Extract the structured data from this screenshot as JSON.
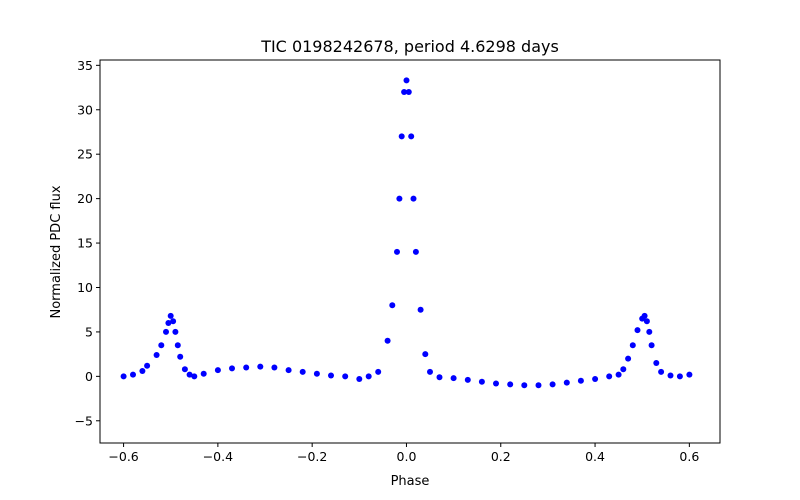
{
  "chart_data": {
    "type": "scatter",
    "title": "TIC 0198242678, period 4.6298 days",
    "xlabel": "Phase",
    "ylabel": "Normalized PDC flux",
    "xlim": [
      -0.65,
      0.665
    ],
    "ylim": [
      -7.5,
      35.6
    ],
    "xticks": [
      -0.6,
      -0.4,
      -0.2,
      0.0,
      0.2,
      0.4,
      0.6
    ],
    "xtick_labels": [
      "−0.6",
      "−0.4",
      "−0.2",
      "0.0",
      "0.2",
      "0.4",
      "0.6"
    ],
    "yticks": [
      -5,
      0,
      5,
      10,
      15,
      20,
      25,
      30,
      35
    ],
    "ytick_labels": [
      "−5",
      "0",
      "5",
      "10",
      "15",
      "20",
      "25",
      "30",
      "35"
    ],
    "grid": false,
    "legend": "none",
    "color": "#0000ff",
    "series": [
      {
        "x": [
          -0.6,
          -0.58,
          -0.56,
          -0.55,
          -0.53,
          -0.52,
          -0.51,
          -0.505,
          -0.5,
          -0.495,
          -0.49,
          -0.485,
          -0.48,
          -0.47,
          -0.46,
          -0.45,
          -0.43,
          -0.4,
          -0.37,
          -0.34,
          -0.31,
          -0.28,
          -0.25,
          -0.22,
          -0.19,
          -0.16,
          -0.13,
          -0.1,
          -0.08,
          -0.06,
          -0.04,
          -0.03,
          -0.02,
          -0.015,
          -0.01,
          -0.005,
          0.0,
          0.005,
          0.01,
          0.015,
          0.02,
          0.03,
          0.04,
          0.05,
          0.07,
          0.1,
          0.13,
          0.16,
          0.19,
          0.22,
          0.25,
          0.28,
          0.31,
          0.34,
          0.37,
          0.4,
          0.43,
          0.45,
          0.46,
          0.47,
          0.48,
          0.49,
          0.5,
          0.505,
          0.51,
          0.515,
          0.52,
          0.53,
          0.54,
          0.56,
          0.58,
          0.6
        ],
        "y": [
          0.0,
          0.2,
          0.6,
          1.2,
          2.4,
          3.5,
          5.0,
          6.0,
          6.8,
          6.2,
          5.0,
          3.5,
          2.2,
          0.8,
          0.2,
          0.0,
          0.3,
          0.7,
          0.9,
          1.0,
          1.1,
          1.0,
          0.7,
          0.5,
          0.3,
          0.1,
          0.0,
          -0.3,
          0.0,
          0.5,
          4.0,
          8.0,
          14.0,
          20.0,
          27.0,
          32.0,
          33.3,
          32.0,
          27.0,
          20.0,
          14.0,
          7.5,
          2.5,
          0.5,
          -0.1,
          -0.2,
          -0.4,
          -0.6,
          -0.8,
          -0.9,
          -1.0,
          -1.0,
          -0.9,
          -0.7,
          -0.5,
          -0.3,
          0.0,
          0.2,
          0.8,
          2.0,
          3.5,
          5.2,
          6.5,
          6.8,
          6.2,
          5.0,
          3.5,
          1.5,
          0.5,
          0.1,
          0.0,
          0.2
        ]
      }
    ]
  }
}
